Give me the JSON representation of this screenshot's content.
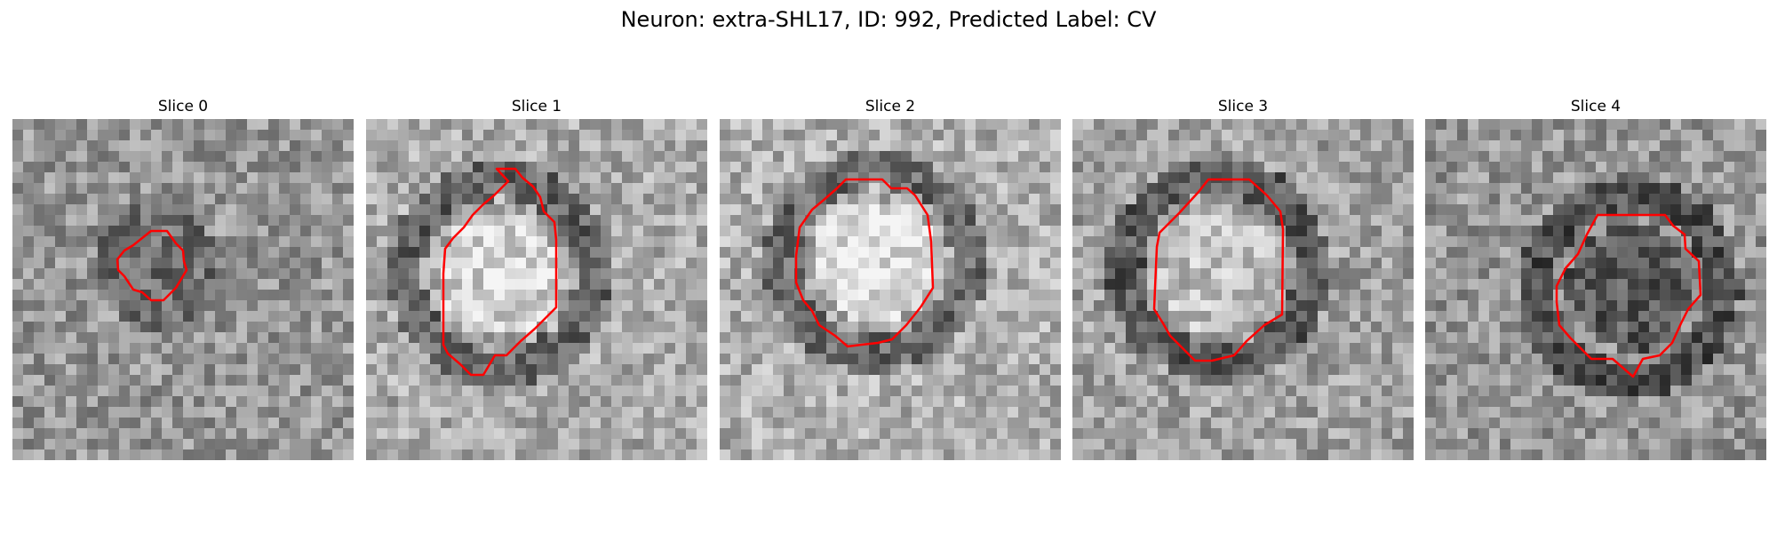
{
  "figure": {
    "title": "Neuron: extra-SHL17, ID: 992, Predicted Label: CV"
  },
  "panels": [
    {
      "title": "Slice 0"
    },
    {
      "title": "Slice 1"
    },
    {
      "title": "Slice 2"
    },
    {
      "title": "Slice 3"
    },
    {
      "title": "Slice 4"
    }
  ],
  "colors": {
    "contour": "#ff0000"
  }
}
